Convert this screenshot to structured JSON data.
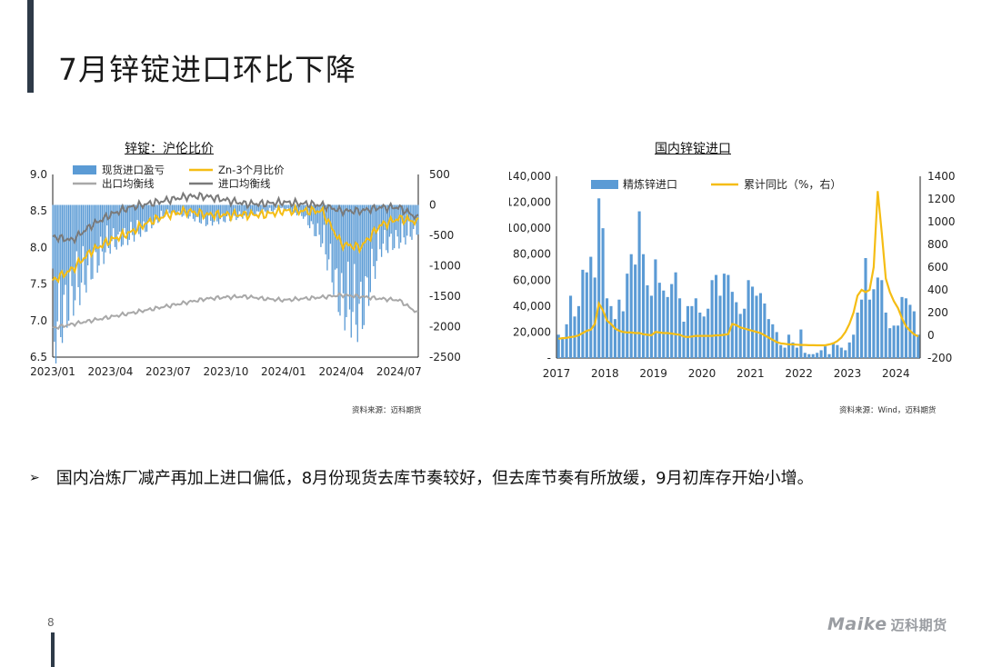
{
  "page": {
    "title": "7月锌锭进口环比下降",
    "note": "国内冶炼厂减产再加上进口偏低，8月份现货去库节奏较好，但去库节奏有所放缓，9月初库存开始小增。",
    "note_bullet": "➢",
    "page_number": "8",
    "logo_en": "Maike",
    "logo_cn": "迈科期货",
    "colors": {
      "bar": "#5b9bd5",
      "gold": "#f5bd14",
      "lightgray": "#a8a8a8",
      "darkgray": "#7a7a7a",
      "accent": "#2e3a48"
    }
  },
  "chart_data": [
    {
      "type": "bar+line",
      "title": "锌锭：沪伦比价",
      "source": "资料来源：迈科期货",
      "x_ticks": [
        "2023/01",
        "2023/04",
        "2023/07",
        "2023/10",
        "2024/01",
        "2024/04",
        "2024/07"
      ],
      "y_left": {
        "min": 6.5,
        "max": 9.0,
        "ticks": [
          "9.0",
          "8.5",
          "8.0",
          "7.5",
          "7.0",
          "6.5"
        ]
      },
      "y_right": {
        "min": -2500,
        "max": 500,
        "ticks": [
          "500",
          "0",
          "-500",
          "-1000",
          "-1500",
          "-2000",
          "-2500"
        ]
      },
      "legend": [
        "现货进口盈亏",
        "Zn-3个月比价",
        "出口均衡线",
        "进口均衡线"
      ],
      "legend_position": "top",
      "series_keys": [
        "现货进口盈亏",
        "Zn-3个月比价",
        "出口均衡线",
        "进口均衡线"
      ],
      "monthly": {
        "x": [
          "2023/01",
          "2023/02",
          "2023/03",
          "2023/04",
          "2023/05",
          "2023/06",
          "2023/07",
          "2023/08",
          "2023/09",
          "2023/10",
          "2023/11",
          "2023/12",
          "2024/01",
          "2024/02",
          "2024/03",
          "2024/04",
          "2024/05",
          "2024/06",
          "2024/07",
          "2024/08"
        ],
        "现货进口盈亏": [
          -1900,
          -1300,
          -900,
          -550,
          -450,
          -300,
          -100,
          -150,
          -250,
          -200,
          -150,
          -100,
          -50,
          -150,
          -500,
          -1400,
          -1600,
          -600,
          -500,
          -350
        ],
        "Zn-3个月比价": [
          7.55,
          7.7,
          7.95,
          8.1,
          8.2,
          8.35,
          8.45,
          8.5,
          8.45,
          8.45,
          8.45,
          8.45,
          8.5,
          8.5,
          8.5,
          8.05,
          8.0,
          8.3,
          8.4,
          8.35
        ],
        "出口均衡线": [
          6.9,
          6.95,
          7.0,
          7.05,
          7.1,
          7.15,
          7.2,
          7.25,
          7.3,
          7.32,
          7.33,
          7.3,
          7.28,
          7.3,
          7.32,
          7.35,
          7.33,
          7.3,
          7.28,
          7.1
        ],
        "进口均衡线": [
          8.15,
          8.1,
          8.3,
          8.45,
          8.55,
          8.6,
          8.65,
          8.7,
          8.7,
          8.65,
          8.6,
          8.6,
          8.62,
          8.6,
          8.58,
          8.5,
          8.5,
          8.55,
          8.55,
          8.4
        ]
      }
    },
    {
      "type": "bar+line",
      "title": "国内锌锭进口",
      "source": "资料来源：Wind，迈科期货",
      "x_ticks": [
        "2017",
        "2018",
        "2019",
        "2020",
        "2021",
        "2022",
        "2023",
        "2024"
      ],
      "y_left": {
        "min": 0,
        "max": 140000,
        "ticks": [
          "140,000",
          "120,000",
          "100,000",
          "80,000",
          "60,000",
          "40,000",
          "20,000",
          "-"
        ]
      },
      "y_right": {
        "min": -200,
        "max": 1400,
        "ticks": [
          "1400",
          "1200",
          "1000",
          "800",
          "600",
          "400",
          "200",
          "0",
          "-200"
        ]
      },
      "legend": [
        "精炼锌进口",
        "累计同比（%，右）"
      ],
      "legend_position": "top",
      "series_keys": [
        "精炼锌进口",
        "累计同比（%，右）"
      ],
      "精炼锌进口": [
        18000,
        15000,
        26000,
        48000,
        32000,
        40000,
        68000,
        66000,
        78000,
        62000,
        123000,
        100000,
        46000,
        40000,
        30000,
        45000,
        36000,
        65000,
        80000,
        72000,
        113000,
        80000,
        56000,
        48000,
        76000,
        58000,
        52000,
        47000,
        57000,
        66000,
        46000,
        28000,
        40000,
        40000,
        46000,
        35000,
        32000,
        38000,
        60000,
        64000,
        48000,
        65000,
        64000,
        51000,
        43000,
        34000,
        38000,
        60000,
        55000,
        48000,
        50000,
        42000,
        30000,
        26000,
        20000,
        10000,
        8000,
        18000,
        12000,
        8000,
        22000,
        4000,
        3000,
        3000,
        4000,
        6000,
        9000,
        3000,
        12000,
        10000,
        8000,
        6000,
        12000,
        18000,
        35000,
        45000,
        77000,
        45000,
        53000,
        62000,
        60000,
        35000,
        23000,
        25000,
        25000,
        47000,
        46000,
        41000,
        36000,
        18000
      ],
      "累计同比（%，右）": [
        -30,
        -25,
        -22,
        -15,
        -10,
        0,
        20,
        40,
        50,
        100,
        280,
        220,
        130,
        100,
        60,
        40,
        30,
        25,
        25,
        20,
        20,
        10,
        5,
        0,
        30,
        25,
        20,
        20,
        15,
        10,
        5,
        -10,
        -15,
        -10,
        -5,
        -5,
        -5,
        -5,
        -5,
        0,
        0,
        5,
        10,
        100,
        90,
        70,
        60,
        50,
        40,
        30,
        20,
        0,
        -20,
        -40,
        -60,
        -70,
        -75,
        -80,
        -80,
        -82,
        -85,
        -85,
        -87,
        -87,
        -88,
        -88,
        -88,
        -80,
        -70,
        -50,
        -20,
        30,
        100,
        200,
        350,
        400,
        380,
        400,
        600,
        1270,
        900,
        500,
        380,
        300,
        240,
        150,
        80,
        40,
        10,
        -10
      ]
    }
  ]
}
